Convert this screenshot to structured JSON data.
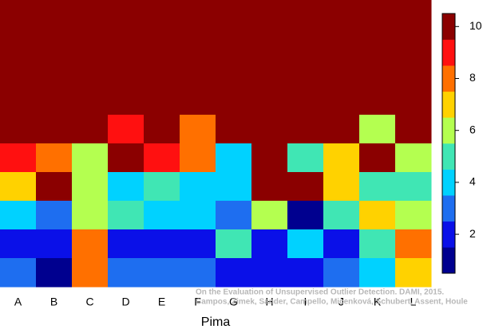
{
  "chart_data": {
    "type": "heatmap",
    "categories": [
      "A",
      "B",
      "C",
      "D",
      "E",
      "F",
      "G",
      "H",
      "I",
      "J",
      "K",
      "L"
    ],
    "values": [
      [
        10,
        10,
        10,
        10,
        10,
        10,
        10,
        10,
        10,
        10,
        10,
        10
      ],
      [
        10,
        10,
        10,
        10,
        10,
        10,
        10,
        10,
        10,
        10,
        10,
        10
      ],
      [
        10,
        10,
        10,
        10,
        10,
        10,
        10,
        10,
        10,
        10,
        10,
        10
      ],
      [
        10,
        10,
        10,
        10,
        10,
        10,
        10,
        10,
        10,
        10,
        10,
        10
      ],
      [
        10,
        10,
        10,
        9,
        10,
        8,
        10,
        10,
        10,
        10,
        6,
        10
      ],
      [
        9,
        8,
        6,
        10,
        9,
        8,
        4,
        10,
        5,
        7,
        10,
        6
      ],
      [
        7,
        10,
        6,
        4,
        5,
        4,
        4,
        10,
        10,
        7,
        5,
        5
      ],
      [
        4,
        3,
        6,
        5,
        4,
        4,
        3,
        6,
        1,
        5,
        7,
        6
      ],
      [
        2,
        2,
        8,
        2,
        2,
        2,
        5,
        2,
        4,
        2,
        5,
        8
      ],
      [
        3,
        1,
        8,
        3,
        3,
        3,
        2,
        2,
        2,
        3,
        4,
        7
      ]
    ],
    "xlabel": "Pima",
    "zlim": [
      0.5,
      10.5
    ],
    "zticks": [
      2,
      4,
      6,
      8,
      10
    ],
    "colors": [
      "#00008f",
      "#0a10e8",
      "#1e6ef0",
      "#00d2ff",
      "#40e6b4",
      "#b4ff50",
      "#ffd200",
      "#ff7000",
      "#ff1010",
      "#8b0000"
    ],
    "notes": [
      "On the Evaluation of Unsupervised Outlier Detection. DAMI, 2015.",
      "Campos, Zimek, Sander, Campello, Micenková, Schubert, Assent, Houle"
    ]
  }
}
